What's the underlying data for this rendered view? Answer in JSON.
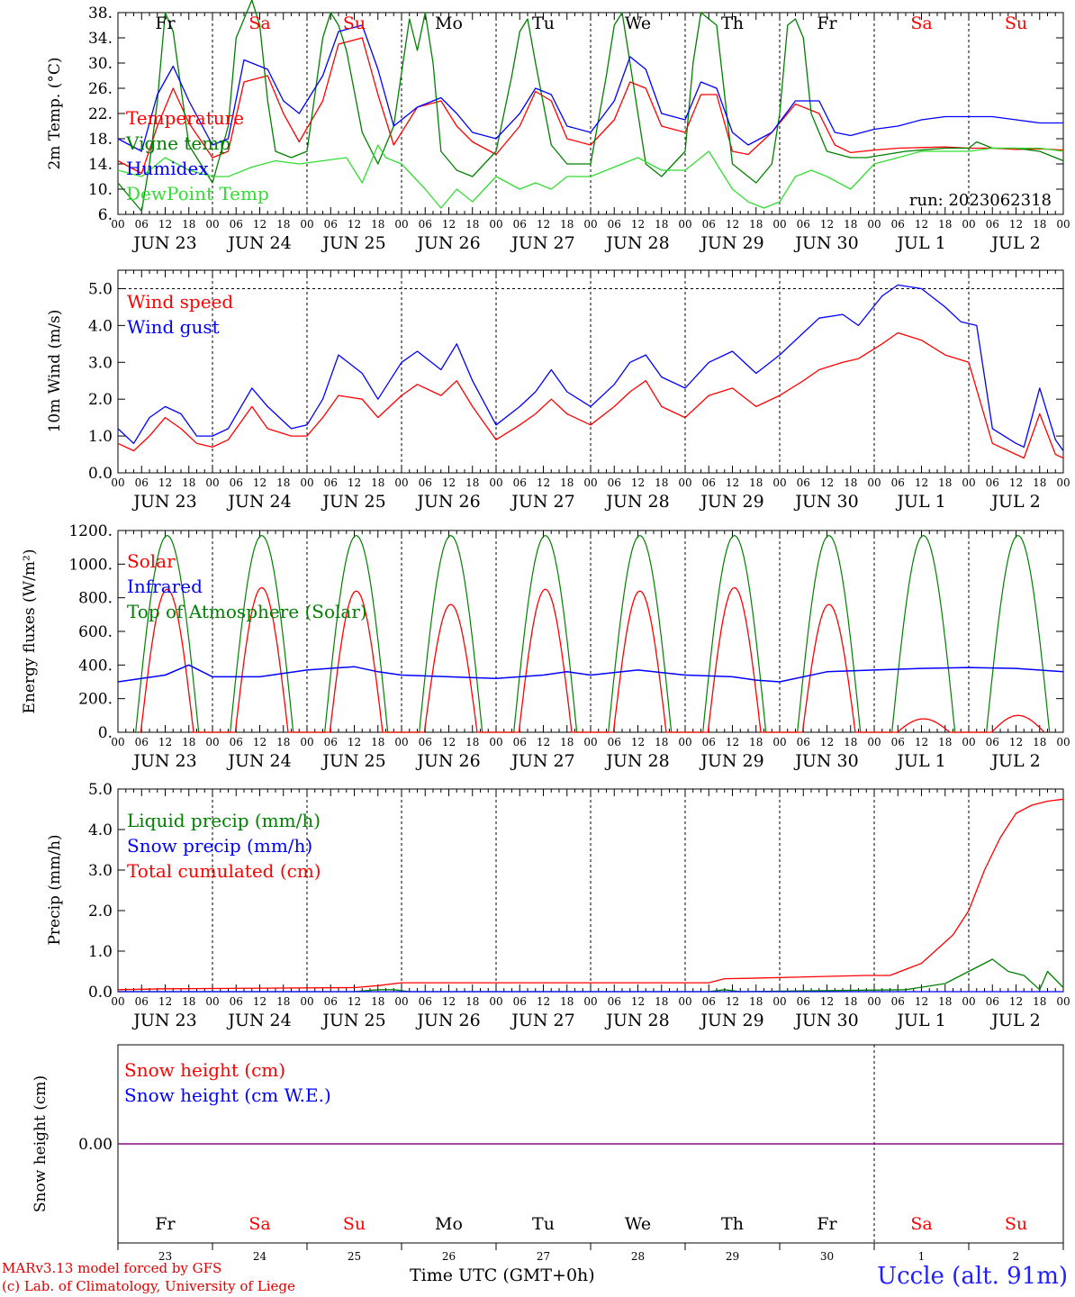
{
  "meta": {
    "run_label": "run: 2023062318",
    "credit_line1": "MARv3.13 model forced by GFS",
    "credit_line2": "(c) Lab. of Climatology, University of Liege",
    "time_axis_label": "Time UTC (GMT+0h)",
    "station": "Uccle (alt. 91m)"
  },
  "colors": {
    "red": "#ff0000",
    "green": "#008000",
    "blue": "#0000ff",
    "lightgreen": "#33dd33",
    "purple": "#800080",
    "weekday": "#000000",
    "weekend": "#ff0000"
  },
  "days": [
    {
      "short": "Fr",
      "date": "JUN 23",
      "num": "23",
      "weekend": false
    },
    {
      "short": "Sa",
      "date": "JUN 24",
      "num": "24",
      "weekend": true
    },
    {
      "short": "Su",
      "date": "JUN 25",
      "num": "25",
      "weekend": true
    },
    {
      "short": "Mo",
      "date": "JUN 26",
      "num": "26",
      "weekend": false
    },
    {
      "short": "Tu",
      "date": "JUN 27",
      "num": "27",
      "weekend": false
    },
    {
      "short": "We",
      "date": "JUN 28",
      "num": "28",
      "weekend": false
    },
    {
      "short": "Th",
      "date": "JUN 29",
      "num": "29",
      "weekend": false
    },
    {
      "short": "Fr",
      "date": "JUN 30",
      "num": "30",
      "weekend": false
    },
    {
      "short": "Sa",
      "date": "JUL  1",
      "num": "1",
      "weekend": true
    },
    {
      "short": "Su",
      "date": "JUL  2",
      "num": "2",
      "weekend": true
    }
  ],
  "hour_labels": [
    "00",
    "06",
    "12",
    "18"
  ],
  "end_hour_label": "00",
  "chart_data": [
    {
      "id": "temp",
      "type": "line",
      "ylabel": "2m Temp. (°C)",
      "yticks": [
        "38.",
        "34.",
        "30.",
        "26.",
        "22.",
        "18.",
        "14.",
        "10.",
        "6."
      ],
      "ylim": [
        6,
        38
      ],
      "x_unit": "hours since JUN 23 00 UTC",
      "series": [
        {
          "name": "Temperature",
          "color": "red",
          "x": [
            0,
            6,
            10,
            14,
            18,
            24,
            28,
            32,
            38,
            42,
            46,
            52,
            56,
            62,
            66,
            70,
            76,
            82,
            86,
            90,
            96,
            102,
            106,
            110,
            114,
            120,
            126,
            130,
            134,
            138,
            144,
            148,
            152,
            156,
            160,
            166,
            172,
            178,
            182,
            186,
            192,
            198,
            204,
            210,
            216,
            222,
            228,
            234,
            240
          ],
          "y": [
            14.5,
            12.5,
            20,
            26,
            20.5,
            15,
            16,
            27,
            28,
            22,
            17.5,
            24,
            33,
            34,
            25,
            17,
            23,
            24,
            20,
            17.5,
            15.5,
            20,
            25.5,
            24,
            18,
            17,
            21,
            27,
            26,
            20,
            19,
            25,
            25,
            16,
            15.5,
            19,
            23.5,
            22,
            17,
            15.8,
            16.2,
            16.5,
            16.6,
            16.7,
            16.5,
            16.5,
            16.3,
            16.4,
            16.2
          ]
        },
        {
          "name": "Vigne temp",
          "color": "green",
          "x": [
            0,
            6,
            8,
            10,
            12,
            14,
            18,
            24,
            28,
            30,
            34,
            36,
            38,
            40,
            44,
            48,
            52,
            54,
            56,
            58,
            62,
            66,
            70,
            74,
            76,
            78,
            80,
            82,
            86,
            90,
            96,
            100,
            102,
            104,
            106,
            110,
            114,
            120,
            124,
            126,
            128,
            130,
            134,
            138,
            144,
            146,
            148,
            152,
            156,
            162,
            166,
            168,
            170,
            172,
            174,
            176,
            180,
            186,
            190,
            200,
            210,
            216,
            218,
            222,
            228,
            234,
            240
          ],
          "y": [
            11,
            6.5,
            14,
            24,
            38,
            35,
            17,
            11,
            20,
            34,
            40,
            36,
            24,
            16,
            15,
            16,
            34,
            38,
            36,
            32,
            19,
            14,
            20,
            37,
            32,
            38,
            30,
            16,
            13,
            12,
            16,
            28,
            35,
            37,
            30,
            17,
            14,
            14,
            28,
            36,
            38,
            30,
            14,
            12,
            16,
            30,
            38,
            36,
            14,
            11,
            14,
            22,
            36,
            37,
            34,
            22,
            16,
            15,
            15,
            16,
            16.5,
            16.5,
            17.5,
            16.5,
            16.5,
            16,
            14.5
          ]
        },
        {
          "name": "Humidex",
          "color": "blue",
          "x": [
            0,
            6,
            10,
            14,
            18,
            24,
            28,
            32,
            38,
            42,
            46,
            52,
            56,
            62,
            66,
            70,
            76,
            82,
            86,
            90,
            96,
            102,
            106,
            110,
            114,
            120,
            126,
            130,
            134,
            138,
            144,
            148,
            152,
            156,
            160,
            166,
            172,
            178,
            182,
            186,
            192,
            198,
            204,
            210,
            216,
            222,
            228,
            234,
            240
          ],
          "y": [
            18,
            16,
            25,
            29.5,
            24,
            17,
            18,
            30.5,
            29,
            24,
            22,
            28,
            35,
            36,
            29,
            20,
            23,
            24.5,
            22,
            19,
            18,
            22,
            26,
            25,
            20,
            19,
            24,
            31,
            29,
            22,
            21,
            27,
            26,
            19,
            17,
            19,
            24,
            24,
            19,
            18.5,
            19.5,
            20,
            21,
            21.5,
            21.5,
            21.5,
            21,
            20.5,
            20.5
          ]
        },
        {
          "name": "DewPoint Temp",
          "color": "lightgreen",
          "x": [
            0,
            6,
            12,
            18,
            24,
            28,
            34,
            40,
            46,
            52,
            58,
            62,
            66,
            68,
            72,
            78,
            82,
            86,
            90,
            96,
            102,
            106,
            110,
            114,
            120,
            126,
            132,
            138,
            144,
            150,
            156,
            160,
            164,
            168,
            172,
            176,
            180,
            186,
            192,
            198,
            204,
            210,
            216,
            222,
            228,
            234,
            240
          ],
          "y": [
            13,
            12,
            15,
            13,
            12,
            12,
            13.5,
            14.5,
            14,
            14.5,
            15,
            11,
            17,
            15,
            14,
            10,
            7,
            10,
            8,
            12,
            10,
            11,
            10,
            12,
            12,
            13.5,
            15,
            13,
            13,
            16,
            10,
            8,
            7,
            8,
            12,
            13,
            12,
            10,
            14,
            15,
            16,
            16,
            16,
            16.5,
            16.5,
            16.5,
            16
          ]
        }
      ],
      "legend": [
        "Temperature",
        "Vigne temp",
        "Humidex",
        "DewPoint Temp"
      ]
    },
    {
      "id": "wind",
      "type": "line",
      "ylabel": "10m Wind (m/s)",
      "yticks": [
        "5.0",
        "4.0",
        "3.0",
        "2.0",
        "1.0",
        "0.0"
      ],
      "ylim": [
        0,
        5.5
      ],
      "series": [
        {
          "name": "Wind speed",
          "color": "red",
          "x": [
            0,
            4,
            8,
            12,
            16,
            20,
            24,
            28,
            34,
            38,
            44,
            48,
            52,
            56,
            62,
            66,
            72,
            76,
            82,
            86,
            90,
            96,
            102,
            106,
            110,
            114,
            120,
            126,
            130,
            134,
            138,
            144,
            150,
            156,
            162,
            168,
            174,
            178,
            184,
            188,
            194,
            198,
            204,
            210,
            216,
            222,
            228,
            230,
            234,
            238,
            240
          ],
          "y": [
            0.8,
            0.6,
            1.0,
            1.5,
            1.2,
            0.8,
            0.7,
            0.9,
            1.8,
            1.2,
            1.0,
            1.0,
            1.5,
            2.1,
            2.0,
            1.5,
            2.1,
            2.4,
            2.1,
            2.5,
            1.8,
            0.9,
            1.3,
            1.6,
            2.0,
            1.6,
            1.3,
            1.8,
            2.2,
            2.5,
            1.8,
            1.5,
            2.1,
            2.3,
            1.8,
            2.1,
            2.5,
            2.8,
            3.0,
            3.1,
            3.5,
            3.8,
            3.6,
            3.2,
            3.0,
            0.8,
            0.5,
            0.4,
            1.6,
            0.5,
            0.4
          ]
        },
        {
          "name": "Wind gust",
          "color": "blue",
          "x": [
            0,
            4,
            8,
            12,
            16,
            20,
            24,
            28,
            34,
            38,
            44,
            48,
            52,
            56,
            62,
            66,
            72,
            76,
            82,
            86,
            90,
            96,
            102,
            106,
            110,
            114,
            120,
            126,
            130,
            134,
            138,
            144,
            150,
            156,
            162,
            168,
            174,
            178,
            184,
            188,
            194,
            198,
            204,
            210,
            214,
            218,
            222,
            228,
            230,
            234,
            238,
            240
          ],
          "y": [
            1.2,
            0.8,
            1.5,
            1.8,
            1.6,
            1.0,
            1.0,
            1.2,
            2.3,
            1.8,
            1.2,
            1.3,
            2.0,
            3.2,
            2.7,
            2.0,
            3.0,
            3.3,
            2.8,
            3.5,
            2.5,
            1.3,
            1.8,
            2.2,
            2.8,
            2.2,
            1.8,
            2.4,
            3.0,
            3.2,
            2.6,
            2.3,
            3.0,
            3.3,
            2.7,
            3.2,
            3.8,
            4.2,
            4.3,
            4.0,
            4.8,
            5.1,
            5.0,
            4.5,
            4.1,
            4.0,
            1.2,
            0.8,
            0.7,
            2.3,
            0.9,
            0.6
          ]
        }
      ],
      "legend": [
        "Wind speed",
        "Wind gust"
      ]
    },
    {
      "id": "energy",
      "type": "line",
      "ylabel": "Energy fluxes (W/m²)",
      "yticks": [
        "1200.",
        "1000.",
        "800.",
        "600.",
        "400.",
        "200.",
        "0."
      ],
      "ylim": [
        0,
        1200
      ],
      "toa_peak": 1170,
      "sunrise_hour": 4.5,
      "sunset_hour": 20.5,
      "solar_peaks": [
        850,
        860,
        840,
        760,
        850,
        840,
        860,
        760,
        80,
        100
      ],
      "series": [
        {
          "name": "Solar",
          "color": "red"
        },
        {
          "name": "Infrared",
          "color": "blue",
          "x": [
            0,
            12,
            18,
            24,
            36,
            48,
            60,
            66,
            72,
            84,
            96,
            108,
            114,
            120,
            132,
            144,
            156,
            162,
            168,
            180,
            192,
            204,
            216,
            228,
            240
          ],
          "y": [
            300,
            340,
            400,
            330,
            330,
            370,
            390,
            360,
            340,
            330,
            320,
            340,
            360,
            340,
            370,
            340,
            330,
            310,
            300,
            360,
            370,
            380,
            385,
            380,
            360
          ]
        },
        {
          "name": "Top of Atmosphere (Solar)",
          "color": "green"
        }
      ],
      "legend": [
        "Solar",
        "Infrared",
        "Top of Atmosphere (Solar)"
      ]
    },
    {
      "id": "precip",
      "type": "line",
      "ylabel": "Precip (mm/h)",
      "yticks": [
        "5.0",
        "4.0",
        "3.0",
        "2.0",
        "1.0",
        "0.0"
      ],
      "ylim": [
        0,
        5
      ],
      "series": [
        {
          "name": "Liquid precip (mm/h)",
          "color": "green",
          "x": [
            0,
            60,
            66,
            70,
            74,
            150,
            154,
            158,
            200,
            210,
            216,
            222,
            226,
            230,
            234,
            236,
            240
          ],
          "y": [
            0,
            0,
            0.05,
            0.05,
            0,
            0,
            0.05,
            0,
            0.05,
            0.2,
            0.5,
            0.8,
            0.5,
            0.4,
            0.05,
            0.5,
            0.1
          ]
        },
        {
          "name": "Snow precip (mm/h)",
          "color": "blue",
          "x": [
            0,
            240
          ],
          "y": [
            0,
            0
          ]
        },
        {
          "name": "Total cumulated (cm)",
          "color": "red",
          "x": [
            0,
            12,
            60,
            66,
            72,
            150,
            154,
            160,
            190,
            196,
            204,
            212,
            216,
            220,
            224,
            228,
            232,
            236,
            240
          ],
          "y": [
            0.05,
            0.07,
            0.1,
            0.15,
            0.22,
            0.22,
            0.32,
            0.33,
            0.4,
            0.4,
            0.7,
            1.4,
            2.0,
            3.0,
            3.8,
            4.4,
            4.6,
            4.7,
            4.75
          ]
        }
      ],
      "legend": [
        "Liquid precip (mm/h)",
        "Snow precip (mm/h)",
        "Total cumulated (cm)"
      ]
    },
    {
      "id": "snow",
      "type": "line",
      "ylabel": "Snow height (cm)",
      "yticks": [
        "0.00"
      ],
      "ylim": [
        -1,
        1
      ],
      "series": [
        {
          "name": "Snow height (cm)",
          "color": "red",
          "x": [
            0,
            240
          ],
          "y": [
            0,
            0
          ]
        },
        {
          "name": "Snow height (cm W.E.)",
          "color": "blue",
          "x": [
            0,
            240
          ],
          "y": [
            0,
            0
          ]
        }
      ],
      "legend": [
        "Snow height (cm)",
        "Snow height (cm W.E.)"
      ]
    }
  ]
}
